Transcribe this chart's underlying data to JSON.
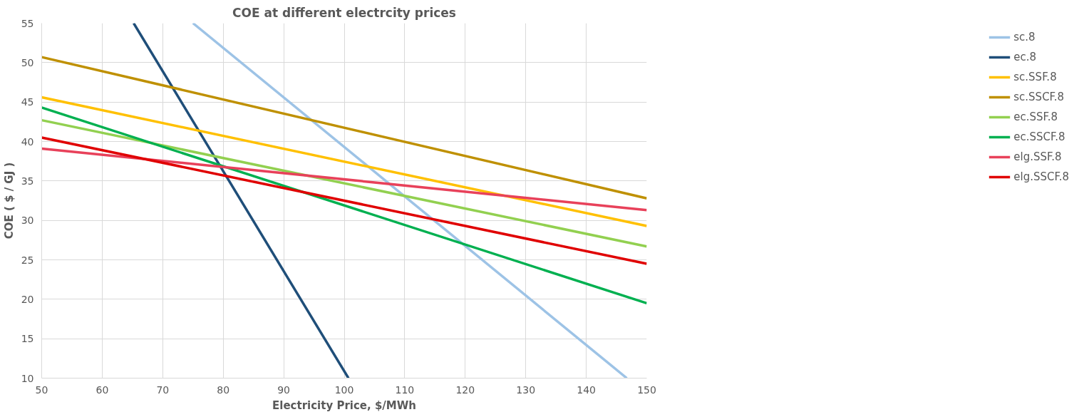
{
  "chart_data": {
    "type": "line",
    "title": "COE at different electrcity prices",
    "xlabel": "Electricity Price, $/MWh",
    "ylabel": "COE ( $ / GJ )",
    "xlim": [
      50,
      150
    ],
    "xticks": [
      50,
      60,
      70,
      80,
      90,
      100,
      110,
      120,
      130,
      140,
      150
    ],
    "ylim": [
      10,
      55
    ],
    "yticks": [
      10,
      15,
      20,
      25,
      30,
      35,
      40,
      45,
      50,
      55
    ],
    "grid": true,
    "legend": "right",
    "marker": "none",
    "line_style": "solid",
    "series": [
      {
        "name": "sc.8",
        "color": "#9dc3e6",
        "x": [
          75,
          146.7
        ],
        "values": [
          55,
          10
        ]
      },
      {
        "name": "ec.8",
        "color": "#1f4e79",
        "x": [
          65.2,
          100.7
        ],
        "values": [
          55,
          10
        ]
      },
      {
        "name": "sc.SSF.8",
        "color": "#ffc000",
        "x": [
          50,
          150
        ],
        "values": [
          45.6,
          29.3
        ]
      },
      {
        "name": "sc.SSCF.8",
        "color": "#bf9000",
        "x": [
          50,
          150
        ],
        "values": [
          50.7,
          32.8
        ]
      },
      {
        "name": "ec.SSF.8",
        "color": "#92d050",
        "x": [
          50,
          150
        ],
        "values": [
          42.7,
          26.7
        ]
      },
      {
        "name": "ec.SSCF.8",
        "color": "#00b050",
        "x": [
          50,
          150
        ],
        "values": [
          44.3,
          19.5
        ]
      },
      {
        "name": "elg.SSF.8",
        "color": "#e8415a",
        "x": [
          50,
          150
        ],
        "values": [
          39.1,
          31.3
        ]
      },
      {
        "name": "elg.SSCF.8",
        "color": "#e00000",
        "x": [
          50,
          150
        ],
        "values": [
          40.5,
          24.5
        ]
      }
    ]
  }
}
